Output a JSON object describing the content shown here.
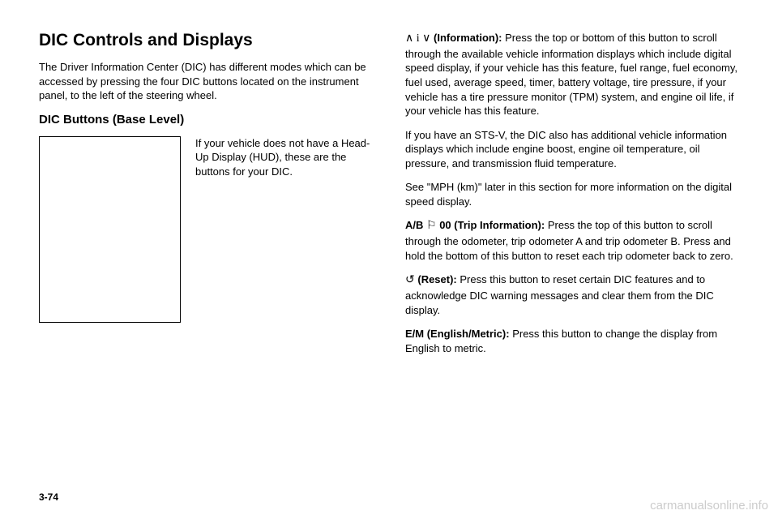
{
  "left": {
    "heading": "DIC Controls and Displays",
    "intro": "The Driver Information Center (DIC) has different modes which can be accessed by pressing the four DIC buttons located on the instrument panel, to the left of the steering wheel.",
    "subheading": "DIC Buttons (Base Level)",
    "caption": "If your vehicle does not have a Head-Up Display (HUD), these are the buttons for your DIC."
  },
  "right": {
    "info_label": "(Information):",
    "info_symbols": "∧ i ∨",
    "info_text": "Press the top or bottom of this button to scroll through the available vehicle information displays which include digital speed display, if your vehicle has this feature, fuel range, fuel economy, fuel used, average speed, timer, battery voltage, tire pressure, if your vehicle has a tire pressure monitor (TPM) system, and engine oil life, if your vehicle has this feature.",
    "stsv_text": "If you have an STS-V, the DIC also has additional vehicle information displays which include engine boost, engine oil temperature, oil pressure, and transmission fluid temperature.",
    "mph_text": "See \"MPH (km)\" later in this section for more information on the digital speed display.",
    "trip_prefix": "A/B",
    "trip_symbol": "⚐",
    "trip_suffix": "00 (Trip Information):",
    "trip_text": "Press the top of this button to scroll through the odometer, trip odometer A and trip odometer B. Press and hold the bottom of this button to reset each trip odometer back to zero.",
    "reset_symbol": "↺",
    "reset_label": "(Reset):",
    "reset_text": "Press this button to reset certain DIC features and to acknowledge DIC warning messages and clear them from the DIC display.",
    "em_label": "E/M (English/Metric):",
    "em_text": "Press this button to change the display from English to metric."
  },
  "page_num": "3-74",
  "watermark": "carmanualsonline.info"
}
